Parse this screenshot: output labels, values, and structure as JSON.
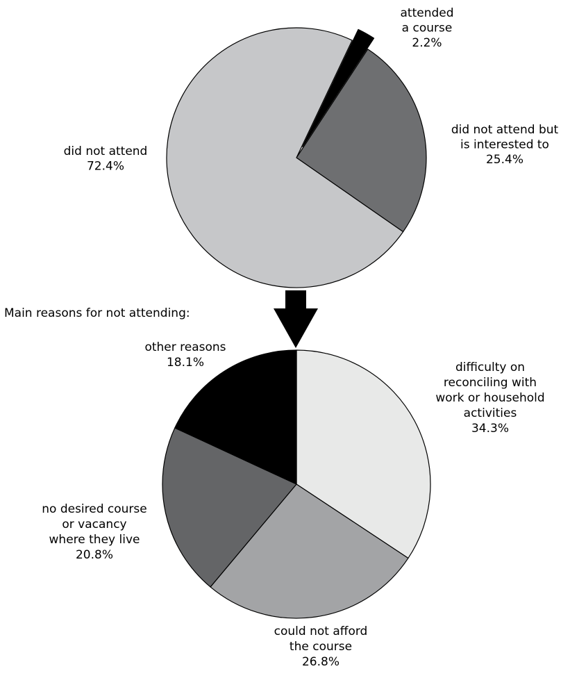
{
  "chart_data": [
    {
      "type": "pie",
      "title": "",
      "start_angle_deg": 64.6,
      "direction": "clockwise",
      "slices": [
        {
          "label": [
            "attended",
            "a course"
          ],
          "value": 2.2,
          "value_label": "2.2%",
          "color": "#000000",
          "exploded": true
        },
        {
          "label": [
            "did not attend but",
            "is interested to"
          ],
          "value": 25.4,
          "value_label": "25.4%",
          "color": "#6e6f71",
          "exploded": false
        },
        {
          "label": [
            "did not attend"
          ],
          "value": 72.4,
          "value_label": "72.4%",
          "color": "#c6c7c9",
          "exploded": false
        }
      ]
    },
    {
      "type": "pie",
      "title": "Main reasons for not attending:",
      "start_angle_deg": 90,
      "direction": "clockwise",
      "slices": [
        {
          "label": [
            "difficulty on",
            "reconciling with",
            "work or household",
            "activities"
          ],
          "value": 34.3,
          "value_label": "34.3%",
          "color": "#e8e9e8",
          "exploded": false
        },
        {
          "label": [
            "could not afford",
            "the course"
          ],
          "value": 26.8,
          "value_label": "26.8%",
          "color": "#a3a4a6",
          "exploded": false
        },
        {
          "label": [
            "no desired course",
            "or vacancy",
            "where they live"
          ],
          "value": 20.8,
          "value_label": "20.8%",
          "color": "#646567",
          "exploded": false
        },
        {
          "label": [
            "other reasons"
          ],
          "value": 18.1,
          "value_label": "18.1%",
          "color": "#000000",
          "exploded": false
        }
      ]
    }
  ],
  "arrow_color": "#000000"
}
